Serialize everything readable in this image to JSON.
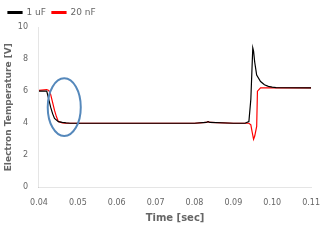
{
  "chart_data": {
    "type": "line",
    "xlabel": "Time [sec]",
    "ylabel": "Electron Temperature [V]",
    "xlim": [
      0.04,
      0.11
    ],
    "ylim": [
      0,
      10
    ],
    "xticks": [
      0.04,
      0.05,
      0.06,
      0.07,
      0.08,
      0.09,
      {
        "value": 0.1,
        "label": "0.10"
      },
      0.11
    ],
    "yticks": [
      0,
      2,
      4,
      6,
      8,
      10
    ],
    "grid": false,
    "legend": "upper left",
    "series": [
      {
        "name": "1 uF",
        "color": "black",
        "x": [
          0.04,
          0.042,
          0.0425,
          0.043,
          0.0435,
          0.044,
          0.045,
          0.046,
          0.047,
          0.048,
          0.049,
          0.05,
          0.051,
          0.06,
          0.07,
          0.08,
          0.083,
          0.0835,
          0.084,
          0.09,
          0.092,
          0.093,
          0.094,
          0.0945,
          0.095,
          0.0952,
          0.0955,
          0.096,
          0.097,
          0.098,
          0.099,
          0.1,
          0.101,
          0.11
        ],
        "values": [
          6.0,
          6.0,
          5.5,
          5.0,
          4.6,
          4.3,
          4.1,
          4.05,
          4.02,
          4.0,
          4.0,
          4.0,
          4.0,
          4.0,
          4.0,
          4.0,
          4.05,
          4.1,
          4.05,
          4.0,
          4.0,
          4.0,
          4.1,
          5.5,
          8.7,
          8.5,
          7.8,
          7.0,
          6.6,
          6.4,
          6.3,
          6.25,
          6.22,
          6.2
        ]
      },
      {
        "name": "20 nF",
        "color": "red",
        "x": [
          0.04,
          0.042,
          0.0425,
          0.043,
          0.0435,
          0.044,
          0.0445,
          0.045,
          0.046,
          0.047,
          0.048,
          0.05,
          0.06,
          0.07,
          0.08,
          0.083,
          0.0835,
          0.084,
          0.09,
          0.092,
          0.093,
          0.094,
          0.0945,
          0.0948,
          0.0952,
          0.0955,
          0.096,
          0.0962,
          0.097,
          0.098,
          0.11
        ],
        "values": [
          6.05,
          6.1,
          6.05,
          5.8,
          5.3,
          4.8,
          4.4,
          4.1,
          4.02,
          4.0,
          4.0,
          4.0,
          4.0,
          4.0,
          4.0,
          4.05,
          4.1,
          4.05,
          4.0,
          4.0,
          4.0,
          4.0,
          3.9,
          3.5,
          3.0,
          3.2,
          3.8,
          6.0,
          6.2,
          6.2,
          6.2
        ]
      }
    ],
    "annotations": [
      {
        "shape": "ellipse",
        "x": 0.0465,
        "y": 5.0,
        "width": 0.0085,
        "height": 3.6,
        "color": "#5588bb"
      }
    ]
  }
}
